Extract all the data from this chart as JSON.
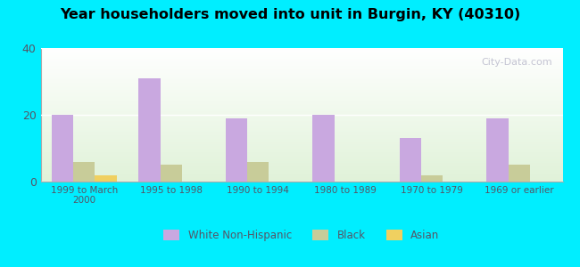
{
  "title": "Year householders moved into unit in Burgin, KY (40310)",
  "categories": [
    "1999 to March\n2000",
    "1995 to 1998",
    "1990 to 1994",
    "1980 to 1989",
    "1970 to 1979",
    "1969 or earlier"
  ],
  "white": [
    20,
    31,
    19,
    20,
    13,
    19
  ],
  "black": [
    6,
    5,
    6,
    0,
    2,
    5
  ],
  "asian": [
    2,
    0,
    0,
    0,
    0,
    0
  ],
  "white_color": "#c9a8e0",
  "black_color": "#c8cc99",
  "asian_color": "#f0d060",
  "bg_outer": "#00eeff",
  "ylim": [
    0,
    40
  ],
  "yticks": [
    0,
    20,
    40
  ],
  "bar_width": 0.25,
  "watermark": "City-Data.com"
}
